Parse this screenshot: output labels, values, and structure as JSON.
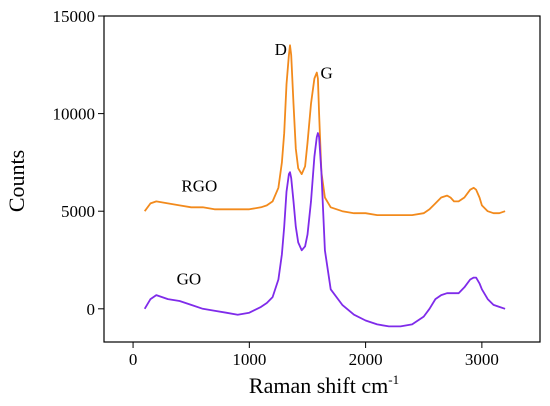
{
  "chart_data": {
    "type": "line",
    "xlabel": "Raman shift cm",
    "xlabel_sup": "-1",
    "ylabel": "Counts",
    "xlim": [
      -250,
      3500
    ],
    "ylim": [
      -1700,
      15000
    ],
    "xticks": [
      0,
      1000,
      2000,
      3000
    ],
    "yticks": [
      0,
      5000,
      10000,
      15000
    ],
    "xtick_labels": [
      "0",
      "1000",
      "2000",
      "3000"
    ],
    "ytick_labels": [
      "0",
      "5000",
      "10000",
      "15000"
    ],
    "grid": false,
    "series": [
      {
        "name": "RGO",
        "color": "#f28a1c",
        "x": [
          100,
          150,
          200,
          300,
          400,
          500,
          600,
          700,
          800,
          900,
          1000,
          1100,
          1150,
          1200,
          1250,
          1280,
          1300,
          1320,
          1340,
          1350,
          1360,
          1380,
          1400,
          1420,
          1450,
          1480,
          1500,
          1530,
          1560,
          1580,
          1590,
          1600,
          1620,
          1650,
          1700,
          1800,
          1900,
          2000,
          2100,
          2200,
          2300,
          2400,
          2500,
          2550,
          2600,
          2650,
          2700,
          2730,
          2760,
          2800,
          2850,
          2900,
          2930,
          2950,
          2980,
          3000,
          3050,
          3100,
          3150,
          3200
        ],
        "y": [
          5000,
          5400,
          5500,
          5400,
          5300,
          5200,
          5200,
          5100,
          5100,
          5100,
          5100,
          5200,
          5300,
          5500,
          6200,
          7500,
          9000,
          11500,
          13000,
          13500,
          13000,
          10500,
          8200,
          7200,
          6900,
          7300,
          8500,
          10500,
          11800,
          12100,
          11800,
          10000,
          7000,
          5700,
          5200,
          5000,
          4900,
          4900,
          4800,
          4800,
          4800,
          4800,
          4900,
          5100,
          5400,
          5700,
          5800,
          5700,
          5500,
          5500,
          5700,
          6100,
          6200,
          6100,
          5700,
          5300,
          5000,
          4900,
          4900,
          5000
        ]
      },
      {
        "name": "GO",
        "color": "#7f2bea",
        "x": [
          100,
          150,
          200,
          300,
          400,
          500,
          600,
          700,
          800,
          900,
          1000,
          1100,
          1150,
          1200,
          1250,
          1280,
          1300,
          1320,
          1340,
          1350,
          1360,
          1380,
          1400,
          1420,
          1450,
          1480,
          1500,
          1530,
          1560,
          1580,
          1590,
          1600,
          1620,
          1650,
          1700,
          1800,
          1900,
          2000,
          2100,
          2200,
          2300,
          2400,
          2500,
          2550,
          2600,
          2650,
          2700,
          2730,
          2760,
          2800,
          2850,
          2900,
          2930,
          2950,
          2980,
          3000,
          3050,
          3100,
          3150,
          3200
        ],
        "y": [
          0,
          500,
          700,
          500,
          400,
          200,
          0,
          -100,
          -200,
          -300,
          -200,
          100,
          300,
          600,
          1500,
          2800,
          4200,
          6000,
          6900,
          7000,
          6700,
          5500,
          4200,
          3400,
          3000,
          3200,
          3800,
          5500,
          7800,
          8800,
          9000,
          8800,
          7000,
          3000,
          1000,
          200,
          -300,
          -600,
          -800,
          -900,
          -900,
          -800,
          -400,
          0,
          500,
          700,
          800,
          800,
          800,
          800,
          1100,
          1500,
          1600,
          1600,
          1300,
          1000,
          500,
          200,
          100,
          0
        ]
      }
    ],
    "annotations": [
      {
        "text": "RGO",
        "x": 570,
        "y": 6000
      },
      {
        "text": "GO",
        "x": 480,
        "y": 1250
      },
      {
        "text": "D",
        "x": 1270,
        "y": 13000
      },
      {
        "text": "G",
        "x": 1665,
        "y": 11800
      }
    ]
  }
}
